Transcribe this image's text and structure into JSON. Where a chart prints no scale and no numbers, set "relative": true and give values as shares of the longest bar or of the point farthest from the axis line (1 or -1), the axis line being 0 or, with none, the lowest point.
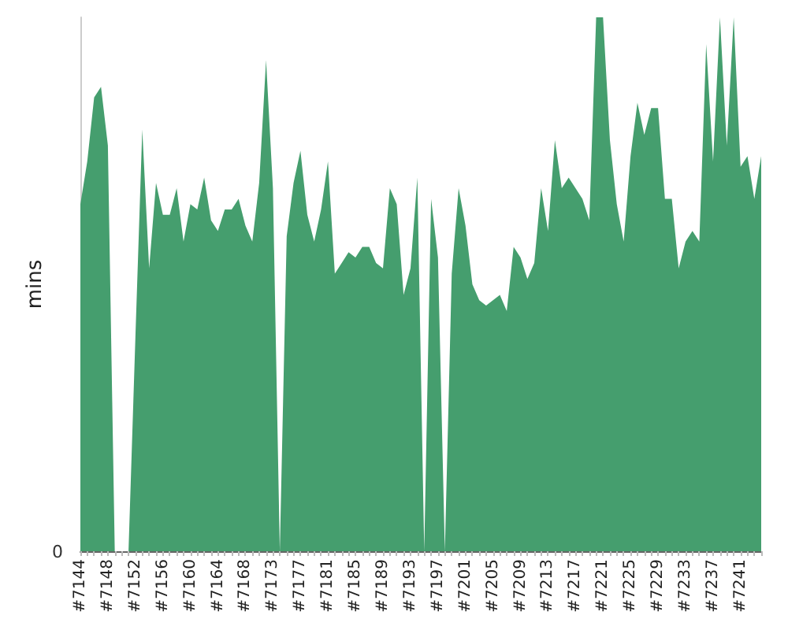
{
  "chart_data": {
    "type": "area",
    "ylabel": "mins",
    "relative": true,
    "color": "#459e6e",
    "grid": false,
    "marker": "none",
    "annotations": [
      "0"
    ],
    "categories": [
      "#7144",
      null,
      null,
      null,
      "#7148",
      null,
      null,
      null,
      "#7152",
      null,
      null,
      null,
      "#7156",
      null,
      null,
      null,
      "#7160",
      null,
      null,
      null,
      "#7164",
      null,
      null,
      null,
      "#7168",
      null,
      null,
      null,
      "#7173",
      null,
      null,
      null,
      "#7177",
      null,
      null,
      null,
      "#7181",
      null,
      null,
      null,
      "#7185",
      null,
      null,
      null,
      "#7189",
      null,
      null,
      null,
      "#7193",
      null,
      null,
      null,
      "#7197",
      null,
      null,
      null,
      "#7201",
      null,
      null,
      null,
      "#7205",
      null,
      null,
      null,
      "#7209",
      null,
      null,
      null,
      "#7213",
      null,
      null,
      null,
      "#7217",
      null,
      null,
      null,
      "#7221",
      null,
      null,
      null,
      "#7225",
      null,
      null,
      null,
      "#7229",
      null,
      null,
      null,
      "#7233",
      null,
      null,
      null,
      "#7237",
      null,
      null,
      null,
      "#7241",
      null,
      null,
      null
    ],
    "values": [
      0.65,
      0.73,
      0.85,
      0.87,
      0.76,
      0,
      0,
      0,
      0.4,
      0.79,
      0.53,
      0.69,
      0.63,
      0.63,
      0.68,
      0.58,
      0.65,
      0.64,
      0.7,
      0.62,
      0.6,
      0.64,
      0.64,
      0.66,
      0.61,
      0.58,
      0.69,
      0.92,
      0.68,
      0,
      0.59,
      0.69,
      0.75,
      0.63,
      0.58,
      0.64,
      0.73,
      0.52,
      0.54,
      0.56,
      0.55,
      0.57,
      0.57,
      0.54,
      0.53,
      0.68,
      0.65,
      0.48,
      0.53,
      0.7,
      0,
      0.66,
      0.55,
      0,
      0.52,
      0.68,
      0.61,
      0.5,
      0.47,
      0.46,
      0.47,
      0.48,
      0.45,
      0.57,
      0.55,
      0.51,
      0.54,
      0.68,
      0.6,
      0.77,
      0.68,
      0.7,
      0.68,
      0.66,
      0.62,
      1,
      1,
      0.77,
      0.65,
      0.58,
      0.74,
      0.84,
      0.78,
      0.83,
      0.83,
      0.66,
      0.66,
      0.53,
      0.58,
      0.6,
      0.58,
      0.95,
      0.73,
      1,
      0.76,
      1,
      0.72,
      0.74,
      0.66,
      0.74
    ]
  }
}
